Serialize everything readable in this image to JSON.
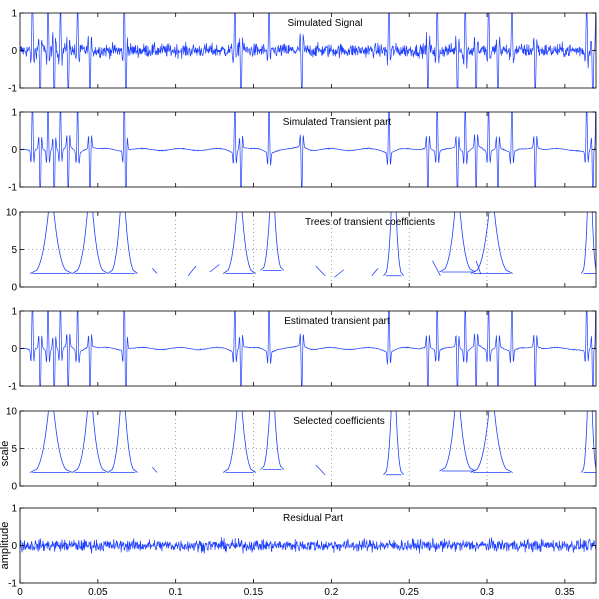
{
  "chart_data": [
    {
      "type": "line",
      "kind": "signal",
      "title": "Simulated Signal",
      "ylim": [
        -1,
        1
      ],
      "yticks": [
        -1,
        0,
        1
      ],
      "xlim": [
        0,
        0.37
      ],
      "noise_amplitude": 0.18,
      "spike_times": [
        0.008,
        0.013,
        0.018,
        0.022,
        0.026,
        0.031,
        0.037,
        0.045,
        0.067,
        0.068,
        0.138,
        0.142,
        0.16,
        0.181,
        0.237,
        0.262,
        0.268,
        0.281,
        0.286,
        0.293,
        0.301,
        0.307,
        0.316,
        0.331,
        0.364,
        0.368,
        0.37
      ],
      "series": [
        {
          "color": "#1f3fff"
        }
      ]
    },
    {
      "type": "line",
      "kind": "transient",
      "title": "Simulated Transient part",
      "ylim": [
        -1,
        1
      ],
      "yticks": [
        -1,
        0,
        1
      ],
      "xlim": [
        0,
        0.37
      ],
      "spike_times": [
        0.008,
        0.013,
        0.018,
        0.022,
        0.026,
        0.031,
        0.037,
        0.045,
        0.067,
        0.068,
        0.138,
        0.142,
        0.16,
        0.181,
        0.237,
        0.262,
        0.268,
        0.281,
        0.286,
        0.293,
        0.301,
        0.307,
        0.316,
        0.331,
        0.364,
        0.368,
        0.37
      ],
      "series": [
        {
          "color": "#1f3fff"
        }
      ]
    },
    {
      "type": "line",
      "kind": "trees",
      "title": "Trees of transient coefficients",
      "ylim": [
        0,
        10
      ],
      "yticks": [
        0,
        5,
        10
      ],
      "xlim": [
        0,
        0.37
      ],
      "dotted_gridlines_x": [
        0.1,
        0.15,
        0.2,
        0.25,
        0.3
      ],
      "trees": [
        {
          "x": 0.02,
          "bottom": 1.8,
          "halfwidth": 0.012
        },
        {
          "x": 0.045,
          "bottom": 1.8,
          "halfwidth": 0.01
        },
        {
          "x": 0.066,
          "bottom": 1.8,
          "halfwidth": 0.008
        },
        {
          "x": 0.141,
          "bottom": 1.8,
          "halfwidth": 0.009
        },
        {
          "x": 0.162,
          "bottom": 2.2,
          "halfwidth": 0.006
        },
        {
          "x": 0.24,
          "bottom": 1.5,
          "halfwidth": 0.005
        },
        {
          "x": 0.281,
          "bottom": 2.0,
          "halfwidth": 0.01
        },
        {
          "x": 0.303,
          "bottom": 1.8,
          "halfwidth": 0.012
        },
        {
          "x": 0.366,
          "bottom": 1.8,
          "halfwidth": 0.004
        }
      ],
      "strokes": [
        [
          [
            0.085,
            2.5
          ],
          [
            0.088,
            1.8
          ]
        ],
        [
          [
            0.108,
            1.5
          ],
          [
            0.113,
            2.8
          ]
        ],
        [
          [
            0.122,
            2.0
          ],
          [
            0.128,
            3.0
          ]
        ],
        [
          [
            0.19,
            2.8
          ],
          [
            0.196,
            1.5
          ]
        ],
        [
          [
            0.202,
            1.3
          ],
          [
            0.208,
            2.3
          ]
        ],
        [
          [
            0.226,
            1.5
          ],
          [
            0.23,
            2.5
          ]
        ],
        [
          [
            0.265,
            3.5
          ],
          [
            0.27,
            1.5
          ]
        ],
        [
          [
            0.293,
            3.5
          ],
          [
            0.296,
            1.7
          ]
        ]
      ],
      "series": [
        {
          "color": "#1f3fff"
        }
      ]
    },
    {
      "type": "line",
      "kind": "transient",
      "title": "Estimated transient part",
      "ylim": [
        -1,
        1
      ],
      "yticks": [
        -1,
        0,
        1
      ],
      "xlim": [
        0,
        0.37
      ],
      "spike_times": [
        0.008,
        0.013,
        0.018,
        0.022,
        0.026,
        0.031,
        0.037,
        0.045,
        0.067,
        0.068,
        0.138,
        0.142,
        0.16,
        0.181,
        0.237,
        0.262,
        0.268,
        0.281,
        0.286,
        0.293,
        0.301,
        0.307,
        0.316,
        0.331,
        0.364,
        0.368,
        0.37
      ],
      "series": [
        {
          "color": "#1f3fff"
        }
      ]
    },
    {
      "type": "line",
      "kind": "trees",
      "title": "Selected coefficients",
      "ylabel": "scale",
      "ylim": [
        0,
        10
      ],
      "yticks": [
        0,
        5,
        10
      ],
      "xlim": [
        0,
        0.37
      ],
      "dotted_gridlines_x": [
        0.1,
        0.15,
        0.2,
        0.25,
        0.3
      ],
      "trees": [
        {
          "x": 0.02,
          "bottom": 1.8,
          "halfwidth": 0.012
        },
        {
          "x": 0.045,
          "bottom": 1.8,
          "halfwidth": 0.01
        },
        {
          "x": 0.066,
          "bottom": 1.8,
          "halfwidth": 0.008
        },
        {
          "x": 0.141,
          "bottom": 1.8,
          "halfwidth": 0.009
        },
        {
          "x": 0.162,
          "bottom": 2.2,
          "halfwidth": 0.006
        },
        {
          "x": 0.24,
          "bottom": 1.5,
          "halfwidth": 0.005
        },
        {
          "x": 0.281,
          "bottom": 2.0,
          "halfwidth": 0.01
        },
        {
          "x": 0.303,
          "bottom": 1.8,
          "halfwidth": 0.012
        },
        {
          "x": 0.366,
          "bottom": 1.8,
          "halfwidth": 0.004
        }
      ],
      "strokes": [
        [
          [
            0.085,
            2.5
          ],
          [
            0.088,
            1.8
          ]
        ],
        [
          [
            0.19,
            2.8
          ],
          [
            0.196,
            1.5
          ]
        ]
      ],
      "series": [
        {
          "color": "#1f3fff"
        }
      ]
    },
    {
      "type": "line",
      "kind": "signal",
      "title": "Residual Part",
      "ylabel": "amplitude",
      "ylim": [
        -1,
        1
      ],
      "yticks": [
        -1,
        0,
        1
      ],
      "xlim": [
        0,
        0.37
      ],
      "xticks": [
        0,
        0.05,
        0.1,
        0.15,
        0.2,
        0.25,
        0.3,
        0.35
      ],
      "noise_amplitude": 0.16,
      "spike_times": [],
      "series": [
        {
          "color": "#1f3fff"
        }
      ]
    }
  ]
}
